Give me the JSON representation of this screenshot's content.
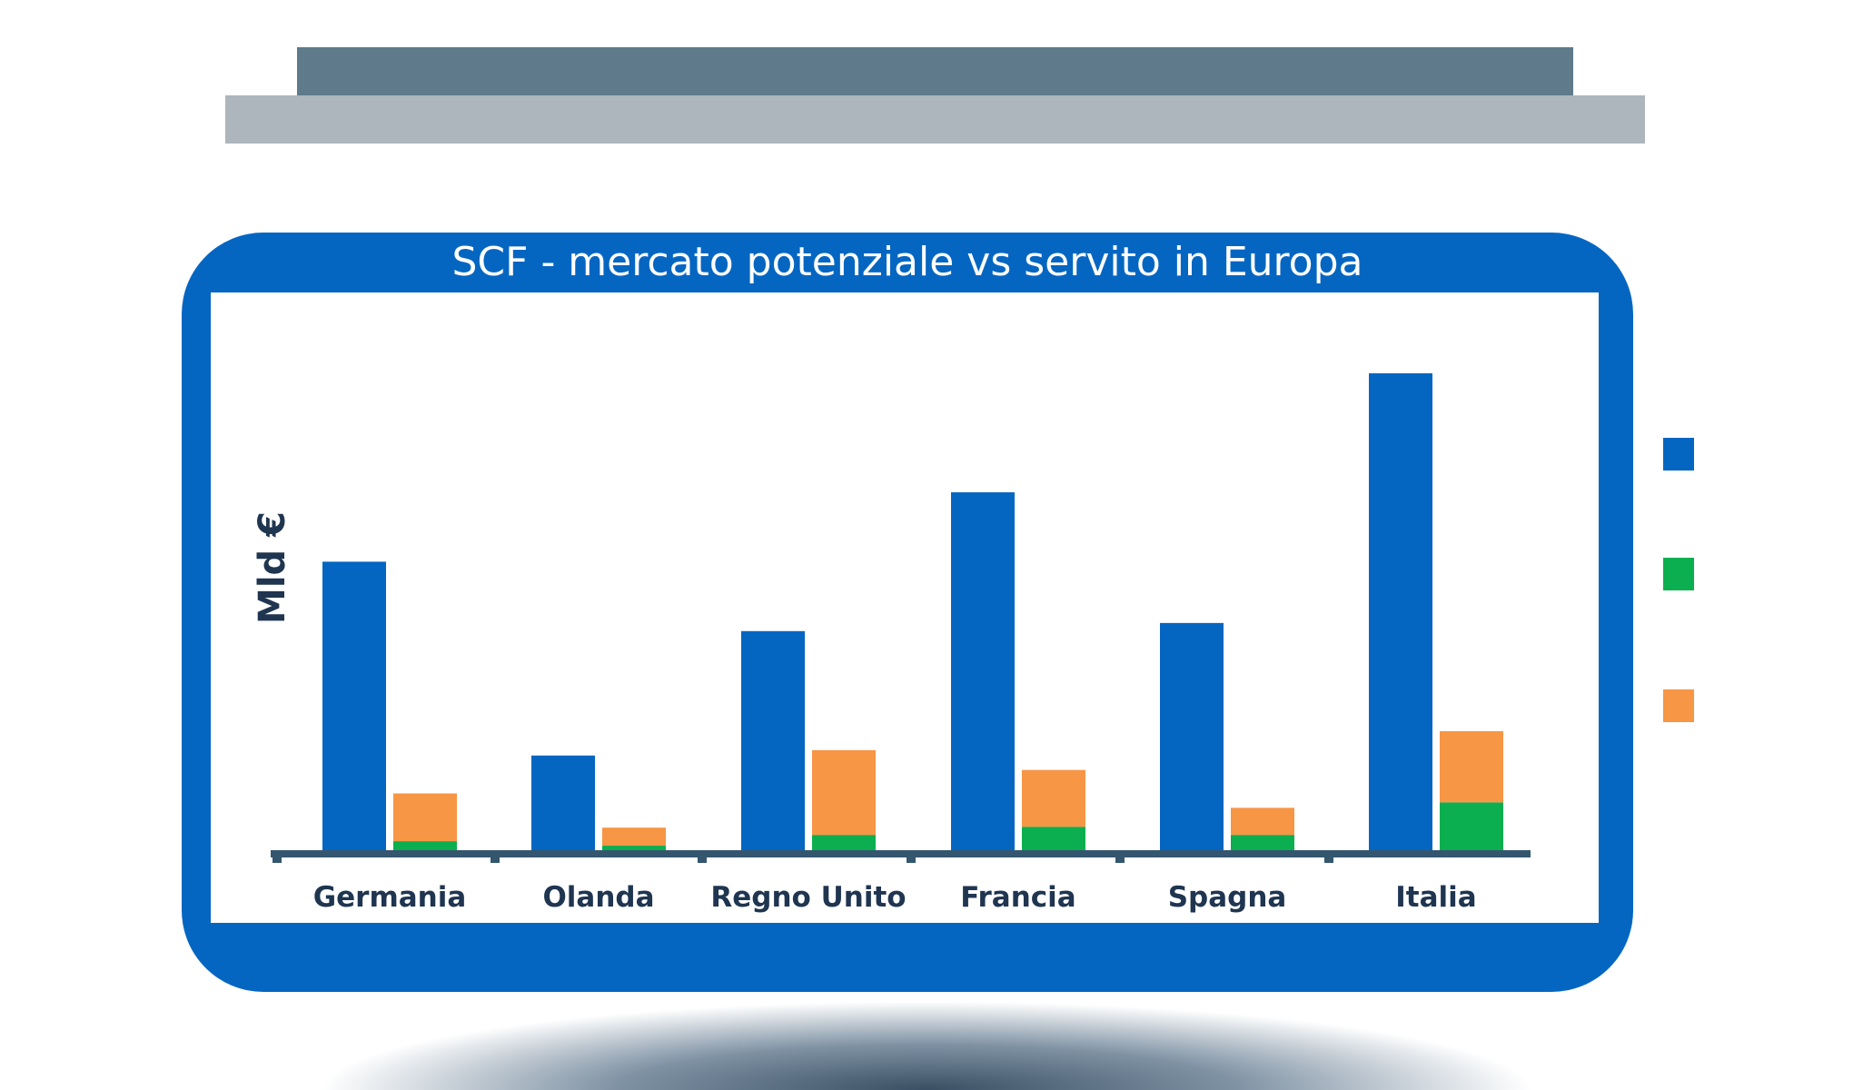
{
  "chart_data": {
    "type": "bar",
    "title": "SCF - mercato potenziale vs servito in Europa",
    "ylabel": "Mld €",
    "categories": [
      "Germania",
      "Olanda",
      "Regno Unito",
      "Francia",
      "Spagna",
      "Italia"
    ],
    "ylim": [
      0,
      540
    ],
    "grid": false,
    "legend_position": "right",
    "series": [
      {
        "values": [
          320,
          105,
          243,
          397,
          252,
          529
        ],
        "color": "#0566c2"
      },
      {
        "values": [
          10,
          5,
          17,
          26,
          17,
          53
        ],
        "color": "#0caf4f"
      },
      {
        "values": [
          53,
          20,
          94,
          63,
          30,
          79
        ],
        "color": "#f79645"
      }
    ]
  }
}
